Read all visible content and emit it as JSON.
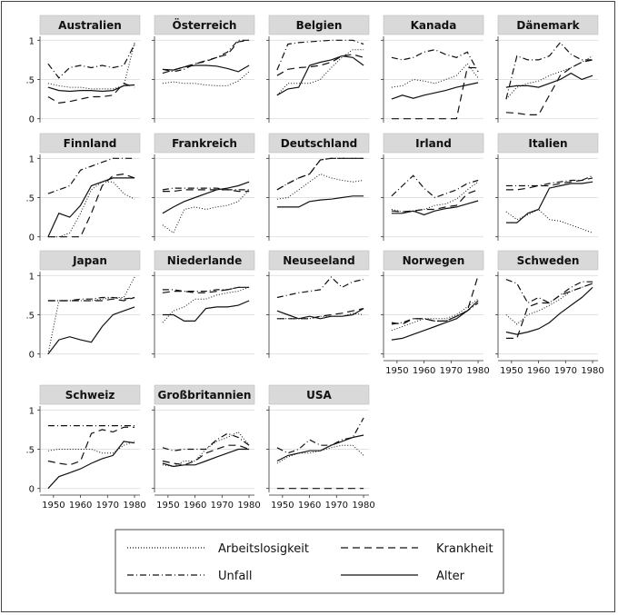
{
  "chart_data": {
    "type": "line",
    "xticks": [
      "1950",
      "1960",
      "1970",
      "1980"
    ],
    "yticks": [
      "0",
      ".5",
      "1"
    ],
    "xlim": [
      1945,
      1982
    ],
    "ylim": [
      -0.05,
      1.05
    ],
    "grid": true,
    "legend_position": "bottom",
    "legend": [
      {
        "key": "unemployment",
        "label": "Arbeitslosigkeit",
        "style": "dotted"
      },
      {
        "key": "sickness",
        "label": "Krankheit",
        "style": "dashed"
      },
      {
        "key": "accident",
        "label": "Unfall",
        "style": "dashdot"
      },
      {
        "key": "pension",
        "label": "Alter",
        "style": "solid"
      }
    ],
    "x": [
      1948,
      1952,
      1956,
      1960,
      1964,
      1968,
      1972,
      1976,
      1980
    ],
    "panels": [
      {
        "name": "Australien",
        "series": {
          "unemployment": [
            0.45,
            0.42,
            0.4,
            0.4,
            0.38,
            0.38,
            0.38,
            0.42,
            0.97
          ],
          "sickness": [
            0.28,
            0.2,
            0.22,
            0.25,
            0.28,
            0.28,
            0.3,
            0.45,
            0.4
          ],
          "accident": [
            0.7,
            0.52,
            0.65,
            0.68,
            0.65,
            0.68,
            0.65,
            0.68,
            0.95
          ],
          "pension": [
            0.4,
            0.36,
            0.35,
            0.36,
            0.36,
            0.35,
            0.36,
            0.42,
            0.43
          ]
        }
      },
      {
        "name": "Österreich",
        "series": {
          "unemployment": [
            0.45,
            0.47,
            0.45,
            0.45,
            0.43,
            0.42,
            0.42,
            0.48,
            0.6
          ],
          "sickness": [
            0.58,
            0.62,
            0.66,
            0.7,
            0.73,
            0.78,
            0.82,
            0.98,
            1.0
          ],
          "accident": [
            0.63,
            0.6,
            0.63,
            0.7,
            0.74,
            0.78,
            0.85,
            1.0,
            1.0
          ],
          "pension": [
            0.63,
            0.62,
            0.66,
            0.68,
            0.68,
            0.67,
            0.64,
            0.6,
            0.68
          ]
        }
      },
      {
        "name": "Belgien",
        "series": {
          "unemployment": [
            0.3,
            0.45,
            0.45,
            0.45,
            0.5,
            0.65,
            0.78,
            0.88,
            0.88
          ],
          "sickness": [
            0.55,
            0.63,
            0.65,
            0.66,
            0.68,
            0.72,
            0.8,
            0.82,
            0.78
          ],
          "accident": [
            0.62,
            0.95,
            0.97,
            0.98,
            0.99,
            1.0,
            1.0,
            1.0,
            0.95
          ],
          "pension": [
            0.3,
            0.38,
            0.4,
            0.68,
            0.72,
            0.75,
            0.8,
            0.78,
            0.68
          ]
        }
      },
      {
        "name": "Kanada",
        "series": {
          "unemployment": [
            0.4,
            0.42,
            0.5,
            0.48,
            0.45,
            0.5,
            0.55,
            0.7,
            0.52
          ],
          "sickness": [
            0.0,
            0.0,
            0.0,
            0.0,
            0.0,
            0.0,
            0.0,
            0.65,
            0.65
          ],
          "accident": [
            0.78,
            0.75,
            0.78,
            0.85,
            0.88,
            0.82,
            0.78,
            0.85,
            0.6
          ],
          "pension": [
            0.25,
            0.3,
            0.26,
            0.3,
            0.33,
            0.36,
            0.4,
            0.43,
            0.46
          ]
        }
      },
      {
        "name": "Dänemark",
        "series": {
          "unemployment": [
            0.25,
            0.4,
            0.45,
            0.48,
            0.55,
            0.6,
            0.65,
            0.72,
            0.8
          ],
          "sickness": [
            0.08,
            0.07,
            0.05,
            0.05,
            0.3,
            0.55,
            0.65,
            0.72,
            0.75
          ],
          "accident": [
            0.25,
            0.8,
            0.75,
            0.75,
            0.8,
            0.97,
            0.82,
            0.75,
            0.75
          ],
          "pension": [
            0.4,
            0.42,
            0.42,
            0.4,
            0.45,
            0.5,
            0.58,
            0.5,
            0.55
          ]
        }
      },
      {
        "name": "Finnland",
        "series": {
          "unemployment": [
            0.0,
            0.0,
            0.05,
            0.3,
            0.6,
            0.7,
            0.7,
            0.55,
            0.48
          ],
          "sickness": [
            0.0,
            0.0,
            0.0,
            0.0,
            0.3,
            0.65,
            0.78,
            0.8,
            0.75
          ],
          "accident": [
            0.55,
            0.6,
            0.65,
            0.85,
            0.9,
            0.95,
            1.0,
            1.0,
            1.0
          ],
          "pension": [
            0.0,
            0.3,
            0.25,
            0.4,
            0.65,
            0.7,
            0.75,
            0.75,
            0.75
          ]
        }
      },
      {
        "name": "Frankreich",
        "series": {
          "unemployment": [
            0.15,
            0.05,
            0.35,
            0.38,
            0.35,
            0.38,
            0.4,
            0.45,
            0.6
          ],
          "sickness": [
            0.58,
            0.58,
            0.6,
            0.6,
            0.6,
            0.6,
            0.6,
            0.58,
            0.58
          ],
          "accident": [
            0.6,
            0.62,
            0.62,
            0.62,
            0.62,
            0.62,
            0.6,
            0.6,
            0.6
          ],
          "pension": [
            0.3,
            0.38,
            0.45,
            0.5,
            0.55,
            0.6,
            0.62,
            0.65,
            0.7
          ]
        }
      },
      {
        "name": "Deutschland",
        "series": {
          "unemployment": [
            0.48,
            0.5,
            0.6,
            0.7,
            0.8,
            0.75,
            0.72,
            0.7,
            0.72
          ],
          "sickness": [
            0.6,
            0.68,
            0.75,
            0.8,
            0.98,
            1.0,
            1.0,
            1.0,
            1.0
          ],
          "accident": [
            0.6,
            0.68,
            0.75,
            0.8,
            0.98,
            1.0,
            1.0,
            1.0,
            1.0
          ],
          "pension": [
            0.38,
            0.38,
            0.38,
            0.45,
            0.47,
            0.48,
            0.5,
            0.52,
            0.52
          ]
        }
      },
      {
        "name": "Irland",
        "series": {
          "unemployment": [
            0.35,
            0.32,
            0.32,
            0.35,
            0.4,
            0.42,
            0.48,
            0.6,
            0.7
          ],
          "sickness": [
            0.33,
            0.32,
            0.33,
            0.35,
            0.35,
            0.38,
            0.4,
            0.55,
            0.6
          ],
          "accident": [
            0.52,
            0.65,
            0.78,
            0.62,
            0.5,
            0.55,
            0.6,
            0.68,
            0.72
          ],
          "pension": [
            0.3,
            0.3,
            0.33,
            0.28,
            0.33,
            0.36,
            0.38,
            0.42,
            0.46
          ]
        }
      },
      {
        "name": "Italien",
        "series": {
          "unemployment": [
            0.32,
            0.22,
            0.28,
            0.35,
            0.22,
            0.2,
            0.15,
            0.1,
            0.05
          ],
          "sickness": [
            0.6,
            0.6,
            0.62,
            0.65,
            0.65,
            0.68,
            0.7,
            0.72,
            0.75
          ],
          "accident": [
            0.65,
            0.65,
            0.65,
            0.65,
            0.68,
            0.7,
            0.72,
            0.72,
            0.78
          ],
          "pension": [
            0.18,
            0.18,
            0.3,
            0.35,
            0.62,
            0.65,
            0.68,
            0.68,
            0.7
          ]
        }
      },
      {
        "name": "Japan",
        "series": {
          "unemployment": [
            0.0,
            0.68,
            0.68,
            0.68,
            0.68,
            0.7,
            0.72,
            0.72,
            0.98
          ],
          "sickness": [
            0.68,
            0.68,
            0.68,
            0.68,
            0.68,
            0.68,
            0.7,
            0.68,
            0.72
          ],
          "accident": [
            0.68,
            0.68,
            0.68,
            0.7,
            0.7,
            0.72,
            0.72,
            0.7,
            0.72
          ],
          "pension": [
            0.0,
            0.18,
            0.22,
            0.18,
            0.15,
            0.35,
            0.5,
            0.55,
            0.6
          ]
        }
      },
      {
        "name": "Niederlande",
        "series": {
          "unemployment": [
            0.4,
            0.55,
            0.6,
            0.7,
            0.7,
            0.75,
            0.78,
            0.8,
            0.85
          ],
          "sickness": [
            0.78,
            0.8,
            0.8,
            0.78,
            0.78,
            0.8,
            0.82,
            0.85,
            0.85
          ],
          "accident": [
            0.82,
            0.82,
            0.8,
            0.8,
            0.8,
            0.82,
            0.82,
            0.85,
            0.85
          ],
          "pension": [
            0.5,
            0.5,
            0.42,
            0.42,
            0.58,
            0.6,
            0.6,
            0.62,
            0.68
          ]
        }
      },
      {
        "name": "Neuseeland",
        "series": {
          "unemployment": [
            0.45,
            0.45,
            0.45,
            0.45,
            0.48,
            0.48,
            0.48,
            0.52,
            0.5
          ],
          "sickness": [
            0.45,
            0.45,
            0.45,
            0.45,
            0.48,
            0.5,
            0.52,
            0.55,
            0.58
          ],
          "accident": [
            0.72,
            0.75,
            0.78,
            0.8,
            0.82,
            0.98,
            0.85,
            0.92,
            0.95
          ],
          "pension": [
            0.55,
            0.5,
            0.45,
            0.48,
            0.45,
            0.48,
            0.48,
            0.5,
            0.58
          ]
        }
      },
      {
        "name": "Norwegen",
        "series": {
          "unemployment": [
            0.3,
            0.35,
            0.4,
            0.45,
            0.45,
            0.45,
            0.5,
            0.6,
            0.7
          ],
          "sickness": [
            0.4,
            0.38,
            0.45,
            0.45,
            0.42,
            0.42,
            0.48,
            0.55,
            1.0
          ],
          "accident": [
            0.38,
            0.4,
            0.45,
            0.45,
            0.42,
            0.42,
            0.48,
            0.55,
            0.65
          ],
          "pension": [
            0.18,
            0.2,
            0.25,
            0.3,
            0.35,
            0.4,
            0.45,
            0.55,
            0.68
          ]
        }
      },
      {
        "name": "Schweden",
        "series": {
          "unemployment": [
            0.5,
            0.38,
            0.5,
            0.55,
            0.62,
            0.7,
            0.8,
            0.85,
            0.9
          ],
          "sickness": [
            0.2,
            0.2,
            0.6,
            0.65,
            0.65,
            0.75,
            0.8,
            0.85,
            0.9
          ],
          "accident": [
            0.95,
            0.9,
            0.65,
            0.72,
            0.65,
            0.75,
            0.85,
            0.92,
            0.92
          ],
          "pension": [
            0.28,
            0.25,
            0.28,
            0.32,
            0.4,
            0.52,
            0.62,
            0.72,
            0.85
          ]
        }
      },
      {
        "name": "Schweiz",
        "series": {
          "unemployment": [
            0.48,
            0.5,
            0.5,
            0.5,
            0.5,
            0.45,
            0.45,
            0.55,
            0.6
          ],
          "sickness": [
            0.35,
            0.32,
            0.3,
            0.35,
            0.7,
            0.75,
            0.72,
            0.78,
            0.78
          ],
          "accident": [
            0.8,
            0.8,
            0.8,
            0.8,
            0.8,
            0.8,
            0.8,
            0.8,
            0.8
          ],
          "pension": [
            0.0,
            0.15,
            0.2,
            0.25,
            0.32,
            0.38,
            0.42,
            0.6,
            0.58
          ]
        }
      },
      {
        "name": "Großbritannien",
        "series": {
          "unemployment": [
            0.3,
            0.28,
            0.35,
            0.35,
            0.5,
            0.6,
            0.65,
            0.72,
            0.55
          ],
          "sickness": [
            0.35,
            0.32,
            0.3,
            0.35,
            0.45,
            0.5,
            0.55,
            0.55,
            0.5
          ],
          "accident": [
            0.52,
            0.48,
            0.5,
            0.5,
            0.5,
            0.62,
            0.7,
            0.65,
            0.55
          ],
          "pension": [
            0.32,
            0.28,
            0.3,
            0.3,
            0.35,
            0.4,
            0.45,
            0.5,
            0.5
          ]
        }
      },
      {
        "name": "USA",
        "series": {
          "unemployment": [
            0.32,
            0.4,
            0.45,
            0.45,
            0.48,
            0.52,
            0.55,
            0.55,
            0.42
          ],
          "sickness": [
            0.0,
            0.0,
            0.0,
            0.0,
            0.0,
            0.0,
            0.0,
            0.0,
            0.0
          ],
          "accident": [
            0.52,
            0.45,
            0.5,
            0.62,
            0.55,
            0.55,
            0.62,
            0.65,
            0.9
          ],
          "pension": [
            0.35,
            0.42,
            0.45,
            0.48,
            0.48,
            0.55,
            0.6,
            0.65,
            0.68
          ]
        }
      }
    ]
  }
}
